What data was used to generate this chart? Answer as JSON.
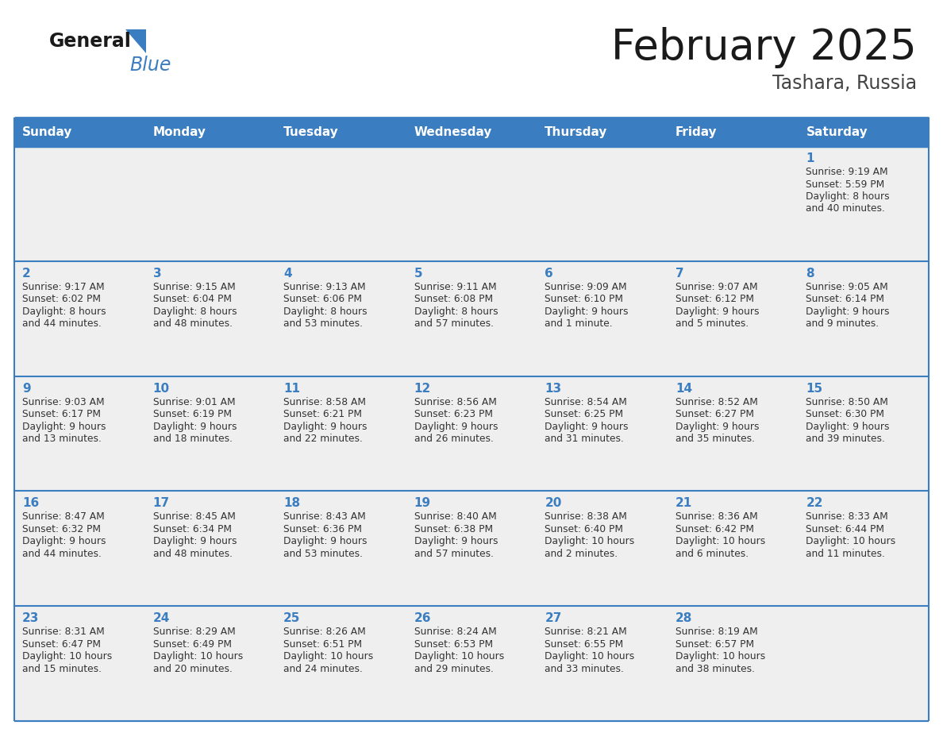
{
  "title": "February 2025",
  "subtitle": "Tashara, Russia",
  "days_of_week": [
    "Sunday",
    "Monday",
    "Tuesday",
    "Wednesday",
    "Thursday",
    "Friday",
    "Saturday"
  ],
  "header_bg": "#3A7DC0",
  "header_text_color": "#FFFFFF",
  "cell_bg": "#EFEFEF",
  "border_color": "#3A7DC0",
  "day_number_color": "#3A7DC0",
  "text_color": "#333333",
  "logo_black": "#1a1a1a",
  "logo_blue": "#3A7DC0",
  "triangle_color": "#3A7DC0",
  "calendar_data": [
    [
      null,
      null,
      null,
      null,
      null,
      null,
      {
        "day": "1",
        "sunrise": "9:19 AM",
        "sunset": "5:59 PM",
        "daylight": "8 hours and 40 minutes."
      }
    ],
    [
      {
        "day": "2",
        "sunrise": "9:17 AM",
        "sunset": "6:02 PM",
        "daylight": "8 hours and 44 minutes."
      },
      {
        "day": "3",
        "sunrise": "9:15 AM",
        "sunset": "6:04 PM",
        "daylight": "8 hours and 48 minutes."
      },
      {
        "day": "4",
        "sunrise": "9:13 AM",
        "sunset": "6:06 PM",
        "daylight": "8 hours and 53 minutes."
      },
      {
        "day": "5",
        "sunrise": "9:11 AM",
        "sunset": "6:08 PM",
        "daylight": "8 hours and 57 minutes."
      },
      {
        "day": "6",
        "sunrise": "9:09 AM",
        "sunset": "6:10 PM",
        "daylight": "9 hours and 1 minute."
      },
      {
        "day": "7",
        "sunrise": "9:07 AM",
        "sunset": "6:12 PM",
        "daylight": "9 hours and 5 minutes."
      },
      {
        "day": "8",
        "sunrise": "9:05 AM",
        "sunset": "6:14 PM",
        "daylight": "9 hours and 9 minutes."
      }
    ],
    [
      {
        "day": "9",
        "sunrise": "9:03 AM",
        "sunset": "6:17 PM",
        "daylight": "9 hours and 13 minutes."
      },
      {
        "day": "10",
        "sunrise": "9:01 AM",
        "sunset": "6:19 PM",
        "daylight": "9 hours and 18 minutes."
      },
      {
        "day": "11",
        "sunrise": "8:58 AM",
        "sunset": "6:21 PM",
        "daylight": "9 hours and 22 minutes."
      },
      {
        "day": "12",
        "sunrise": "8:56 AM",
        "sunset": "6:23 PM",
        "daylight": "9 hours and 26 minutes."
      },
      {
        "day": "13",
        "sunrise": "8:54 AM",
        "sunset": "6:25 PM",
        "daylight": "9 hours and 31 minutes."
      },
      {
        "day": "14",
        "sunrise": "8:52 AM",
        "sunset": "6:27 PM",
        "daylight": "9 hours and 35 minutes."
      },
      {
        "day": "15",
        "sunrise": "8:50 AM",
        "sunset": "6:30 PM",
        "daylight": "9 hours and 39 minutes."
      }
    ],
    [
      {
        "day": "16",
        "sunrise": "8:47 AM",
        "sunset": "6:32 PM",
        "daylight": "9 hours and 44 minutes."
      },
      {
        "day": "17",
        "sunrise": "8:45 AM",
        "sunset": "6:34 PM",
        "daylight": "9 hours and 48 minutes."
      },
      {
        "day": "18",
        "sunrise": "8:43 AM",
        "sunset": "6:36 PM",
        "daylight": "9 hours and 53 minutes."
      },
      {
        "day": "19",
        "sunrise": "8:40 AM",
        "sunset": "6:38 PM",
        "daylight": "9 hours and 57 minutes."
      },
      {
        "day": "20",
        "sunrise": "8:38 AM",
        "sunset": "6:40 PM",
        "daylight": "10 hours and 2 minutes."
      },
      {
        "day": "21",
        "sunrise": "8:36 AM",
        "sunset": "6:42 PM",
        "daylight": "10 hours and 6 minutes."
      },
      {
        "day": "22",
        "sunrise": "8:33 AM",
        "sunset": "6:44 PM",
        "daylight": "10 hours and 11 minutes."
      }
    ],
    [
      {
        "day": "23",
        "sunrise": "8:31 AM",
        "sunset": "6:47 PM",
        "daylight": "10 hours and 15 minutes."
      },
      {
        "day": "24",
        "sunrise": "8:29 AM",
        "sunset": "6:49 PM",
        "daylight": "10 hours and 20 minutes."
      },
      {
        "day": "25",
        "sunrise": "8:26 AM",
        "sunset": "6:51 PM",
        "daylight": "10 hours and 24 minutes."
      },
      {
        "day": "26",
        "sunrise": "8:24 AM",
        "sunset": "6:53 PM",
        "daylight": "10 hours and 29 minutes."
      },
      {
        "day": "27",
        "sunrise": "8:21 AM",
        "sunset": "6:55 PM",
        "daylight": "10 hours and 33 minutes."
      },
      {
        "day": "28",
        "sunrise": "8:19 AM",
        "sunset": "6:57 PM",
        "daylight": "10 hours and 38 minutes."
      },
      null
    ]
  ]
}
